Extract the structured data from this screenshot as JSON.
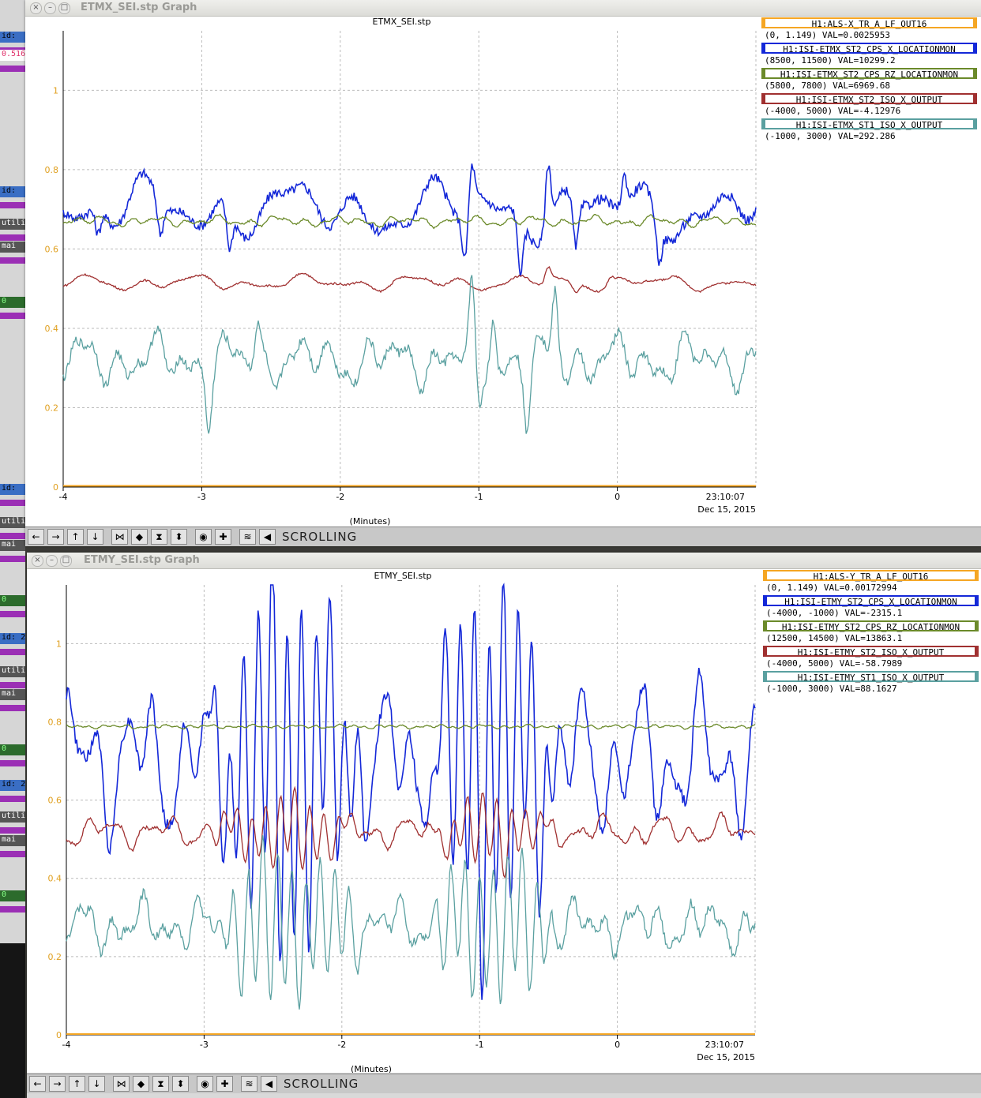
{
  "background_fragments": [
    {
      "text": "id:",
      "top": 40,
      "bg": "#3a6ec4",
      "color": "#000"
    },
    {
      "text": "0.516",
      "top": 63,
      "bg": "#ffffff",
      "color": "#e0306a"
    },
    {
      "text": "id:",
      "top": 236,
      "bg": "#3a6ec4",
      "color": "#000"
    },
    {
      "text": "utili",
      "top": 277,
      "bg": "#555555",
      "color": "#fff"
    },
    {
      "text": "mai",
      "top": 306,
      "bg": "#555555",
      "color": "#fff"
    },
    {
      "text": "0",
      "top": 376,
      "bg": "#2c6b2c",
      "color": "#8f8"
    },
    {
      "text": "id:",
      "top": 613,
      "bg": "#3a6ec4",
      "color": "#000"
    },
    {
      "text": "utili",
      "top": 655,
      "bg": "#555555",
      "color": "#fff"
    },
    {
      "text": "mai",
      "top": 684,
      "bg": "#555555",
      "color": "#fff"
    },
    {
      "text": "0",
      "top": 754,
      "bg": "#2c6b2c",
      "color": "#8f8"
    },
    {
      "text": "id: 2",
      "top": 802,
      "bg": "#3a6ec4",
      "color": "#000"
    },
    {
      "text": "utili",
      "top": 844,
      "bg": "#555555",
      "color": "#fff"
    },
    {
      "text": "mai",
      "top": 873,
      "bg": "#555555",
      "color": "#fff"
    },
    {
      "text": "0",
      "top": 943,
      "bg": "#2c6b2c",
      "color": "#8f8"
    },
    {
      "text": "id: 2",
      "top": 988,
      "bg": "#3a6ec4",
      "color": "#000"
    },
    {
      "text": "utili",
      "top": 1028,
      "bg": "#555555",
      "color": "#fff"
    },
    {
      "text": "mai",
      "top": 1058,
      "bg": "#555555",
      "color": "#fff"
    },
    {
      "text": "0",
      "top": 1128,
      "bg": "#2c6b2c",
      "color": "#8f8"
    }
  ],
  "windows": [
    {
      "title": "ETMX_SEI.stp Graph",
      "plot_title": "ETMX_SEI.stp",
      "x_ticks": [
        "-4",
        "-3",
        "-2",
        "-1",
        "0"
      ],
      "y_ticks": [
        "0",
        "0.2",
        "0.4",
        "0.6",
        "0.8",
        "1"
      ],
      "time_label": "23:10:07",
      "date_label": "Dec 15, 2015",
      "xlabel": "(Minutes)",
      "mode": "SCROLLING",
      "legend": [
        {
          "name": "H1:ALS-X_TR_A_LF_OUT16",
          "range": "(0, 1.149) VAL=0.0025953",
          "color": "#f5a623"
        },
        {
          "name": "H1:ISI-ETMX_ST2_CPS_X_LOCATIONMON",
          "range": "(8500, 11500) VAL=10299.2",
          "color": "#1428d8"
        },
        {
          "name": "H1:ISI-ETMX_ST2_CPS_RZ_LOCATIONMON",
          "range": "(5800, 7800) VAL=6969.68",
          "color": "#6b8a2a"
        },
        {
          "name": "H1:ISI-ETMX_ST2_ISO_X_OUTPUT",
          "range": "(-4000, 5000) VAL=-4.12976",
          "color": "#a03030"
        },
        {
          "name": "H1:ISI-ETMX_ST1_ISO_X_OUTPUT",
          "range": "(-1000, 3000) VAL=292.286",
          "color": "#5aa0a0"
        }
      ]
    },
    {
      "title": "ETMY_SEI.stp Graph",
      "plot_title": "ETMY_SEI.stp",
      "x_ticks": [
        "-4",
        "-3",
        "-2",
        "-1",
        "0"
      ],
      "y_ticks": [
        "0",
        "0.2",
        "0.4",
        "0.6",
        "0.8",
        "1"
      ],
      "time_label": "23:10:07",
      "date_label": "Dec 15, 2015",
      "xlabel": "(Minutes)",
      "mode": "SCROLLING",
      "legend": [
        {
          "name": "H1:ALS-Y_TR_A_LF_OUT16",
          "range": "(0, 1.149) VAL=0.00172994",
          "color": "#f5a623"
        },
        {
          "name": "H1:ISI-ETMY_ST2_CPS_X_LOCATIONMON",
          "range": "(-4000, -1000) VAL=-2315.1",
          "color": "#1428d8"
        },
        {
          "name": "H1:ISI-ETMY_ST2_CPS_RZ_LOCATIONMON",
          "range": "(12500, 14500) VAL=13863.1",
          "color": "#6b8a2a"
        },
        {
          "name": "H1:ISI-ETMY_ST2_ISO_X_OUTPUT",
          "range": "(-4000, 5000) VAL=-58.7989",
          "color": "#a03030"
        },
        {
          "name": "H1:ISI-ETMY_ST1_ISO_X_OUTPUT",
          "range": "(-1000, 3000) VAL=88.1627",
          "color": "#5aa0a0"
        }
      ]
    }
  ],
  "toolbar_buttons": [
    {
      "name": "scroll-left-button",
      "glyph": "←"
    },
    {
      "name": "scroll-right-button",
      "glyph": "→"
    },
    {
      "name": "scroll-up-button",
      "glyph": "↑"
    },
    {
      "name": "scroll-down-button",
      "glyph": "↓"
    },
    {
      "name": "zoom-in-x-button",
      "glyph": "⋈"
    },
    {
      "name": "zoom-out-x-button",
      "glyph": "◆"
    },
    {
      "name": "zoom-in-y-button",
      "glyph": "⧗"
    },
    {
      "name": "zoom-out-y-button",
      "glyph": "⬍"
    },
    {
      "name": "reset-button",
      "glyph": "◉"
    },
    {
      "name": "add-button",
      "glyph": "✚"
    },
    {
      "name": "auto-scale-button",
      "glyph": "≋"
    },
    {
      "name": "scroll-mode-button",
      "glyph": "◀"
    }
  ],
  "chart_data": [
    {
      "type": "line",
      "title": "ETMX_SEI.stp",
      "xlabel": "(Minutes)",
      "ylabel": "",
      "xlim": [
        -4,
        1
      ],
      "ylim": [
        0,
        1.15
      ],
      "grid": true,
      "series": [
        {
          "name": "H1:ALS-X_TR_A_LF_OUT16",
          "color": "#f5a623",
          "base": 0.003,
          "amp": 0.0,
          "freq": 0,
          "noise": 0.0
        },
        {
          "name": "H1:ISI-ETMX_ST2_CPS_X_LOCATIONMON",
          "color": "#1428d8",
          "base": 0.7,
          "amp": 0.07,
          "freq": 9,
          "noise": 0.04,
          "spikes": [
            [
              -3.75,
              0.64
            ],
            [
              -3.3,
              0.62
            ],
            [
              -2.8,
              0.6
            ],
            [
              -1.1,
              0.58
            ],
            [
              -1.05,
              0.8
            ],
            [
              -0.7,
              0.56
            ],
            [
              -0.5,
              0.86
            ],
            [
              -0.3,
              0.58
            ],
            [
              0.05,
              0.78
            ],
            [
              0.3,
              0.6
            ]
          ]
        },
        {
          "name": "H1:ISI-ETMX_ST2_CPS_RZ_LOCATIONMON",
          "color": "#6b8a2a",
          "base": 0.67,
          "amp": 0.012,
          "freq": 22,
          "noise": 0.008
        },
        {
          "name": "H1:ISI-ETMX_ST2_ISO_X_OUTPUT",
          "color": "#a03030",
          "base": 0.515,
          "amp": 0.02,
          "freq": 12,
          "noise": 0.008,
          "spikes": [
            [
              -0.5,
              0.55
            ],
            [
              -0.3,
              0.49
            ],
            [
              -0.05,
              0.53
            ]
          ]
        },
        {
          "name": "H1:ISI-ETMX_ST1_ISO_X_OUTPUT",
          "color": "#5aa0a0",
          "base": 0.32,
          "amp": 0.06,
          "freq": 18,
          "noise": 0.04,
          "spikes": [
            [
              -2.95,
              0.2
            ],
            [
              -2.6,
              0.4
            ],
            [
              -1.05,
              0.46
            ],
            [
              -1.0,
              0.18
            ],
            [
              -0.65,
              0.17
            ],
            [
              -0.45,
              0.48
            ],
            [
              -0.9,
              0.44
            ]
          ]
        }
      ]
    },
    {
      "type": "line",
      "title": "ETMY_SEI.stp",
      "xlabel": "(Minutes)",
      "ylabel": "",
      "xlim": [
        -4,
        1
      ],
      "ylim": [
        0,
        1.15
      ],
      "grid": true,
      "series": [
        {
          "name": "H1:ALS-Y_TR_A_LF_OUT16",
          "color": "#f5a623",
          "base": 0.002,
          "amp": 0.0,
          "freq": 0,
          "noise": 0.0
        },
        {
          "name": "H1:ISI-ETMY_ST2_CPS_X_LOCATIONMON",
          "color": "#1428d8",
          "base": 0.7,
          "amp": 0.2,
          "freq": 22,
          "noise": 0.05,
          "burst": [
            [
              -3.0,
              -1.8,
              0.42
            ],
            [
              -1.4,
              -0.4,
              0.42
            ]
          ]
        },
        {
          "name": "H1:ISI-ETMY_ST2_CPS_RZ_LOCATIONMON",
          "color": "#6b8a2a",
          "base": 0.788,
          "amp": 0.004,
          "freq": 30,
          "noise": 0.004
        },
        {
          "name": "H1:ISI-ETMY_ST2_ISO_X_OUTPUT",
          "color": "#a03030",
          "base": 0.52,
          "amp": 0.04,
          "freq": 22,
          "noise": 0.015,
          "burst": [
            [
              -3.0,
              -1.8,
              0.08
            ],
            [
              -1.4,
              -0.4,
              0.08
            ]
          ]
        },
        {
          "name": "H1:ISI-ETMY_ST1_ISO_X_OUTPUT",
          "color": "#5aa0a0",
          "base": 0.28,
          "amp": 0.06,
          "freq": 22,
          "noise": 0.04,
          "burst": [
            [
              -3.0,
              -1.8,
              0.18
            ],
            [
              -1.4,
              -0.4,
              0.18
            ]
          ]
        }
      ]
    }
  ]
}
